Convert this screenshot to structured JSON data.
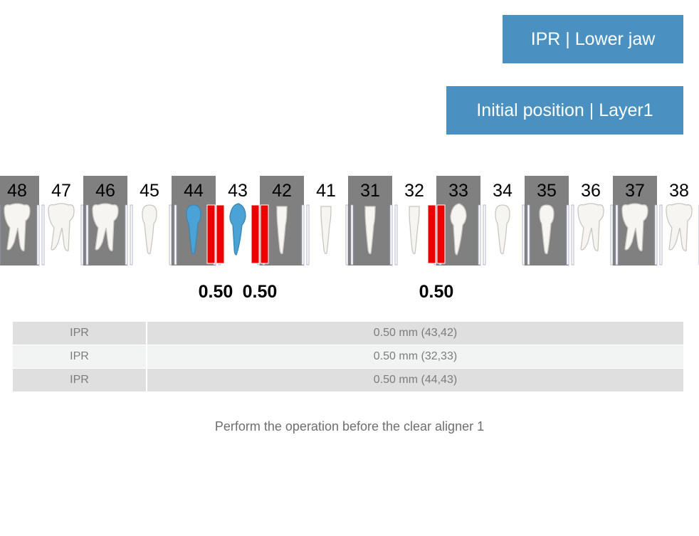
{
  "header": {
    "jaw_label": "IPR | Lower jaw",
    "position_label": "Initial position | Layer1"
  },
  "colors": {
    "banner": "#4a91c1",
    "highlight_box": "#808080",
    "ipr_strip": "#ee0000",
    "treated_tooth": "#4aa3d4",
    "tooth_fill": "#f6f5f1",
    "tooth_outline": "#c9c6be"
  },
  "chart_data": {
    "type": "table",
    "teeth": [
      {
        "number": "48",
        "shape": "molar",
        "highlighted": true,
        "treated": false
      },
      {
        "number": "47",
        "shape": "molar",
        "highlighted": false,
        "treated": false
      },
      {
        "number": "46",
        "shape": "molar",
        "highlighted": true,
        "treated": false
      },
      {
        "number": "45",
        "shape": "premolar",
        "highlighted": false,
        "treated": false
      },
      {
        "number": "44",
        "shape": "premolar",
        "highlighted": true,
        "treated": true
      },
      {
        "number": "43",
        "shape": "canine",
        "highlighted": false,
        "treated": true
      },
      {
        "number": "42",
        "shape": "incisor",
        "highlighted": true,
        "treated": false
      },
      {
        "number": "41",
        "shape": "incisor",
        "highlighted": false,
        "treated": false
      },
      {
        "number": "31",
        "shape": "incisor",
        "highlighted": true,
        "treated": false
      },
      {
        "number": "32",
        "shape": "incisor",
        "highlighted": false,
        "treated": false
      },
      {
        "number": "33",
        "shape": "canine",
        "highlighted": true,
        "treated": false
      },
      {
        "number": "34",
        "shape": "premolar",
        "highlighted": false,
        "treated": false
      },
      {
        "number": "35",
        "shape": "premolar",
        "highlighted": true,
        "treated": false
      },
      {
        "number": "36",
        "shape": "molar",
        "highlighted": false,
        "treated": false
      },
      {
        "number": "37",
        "shape": "molar",
        "highlighted": true,
        "treated": false
      },
      {
        "number": "38",
        "shape": "molar",
        "highlighted": false,
        "treated": false
      }
    ],
    "ipr_points": [
      {
        "between": [
          "44",
          "43"
        ],
        "amount": "0.50"
      },
      {
        "between": [
          "43",
          "42"
        ],
        "amount": "0.50"
      },
      {
        "between": [
          "32",
          "33"
        ],
        "amount": "0.50"
      }
    ]
  },
  "table": {
    "rows": [
      {
        "type": "IPR",
        "value": "0.50 mm (43,42)"
      },
      {
        "type": "IPR",
        "value": "0.50 mm (32,33)"
      },
      {
        "type": "IPR",
        "value": "0.50 mm (44,43)"
      }
    ]
  },
  "note": "Perform the operation before the clear aligner 1"
}
